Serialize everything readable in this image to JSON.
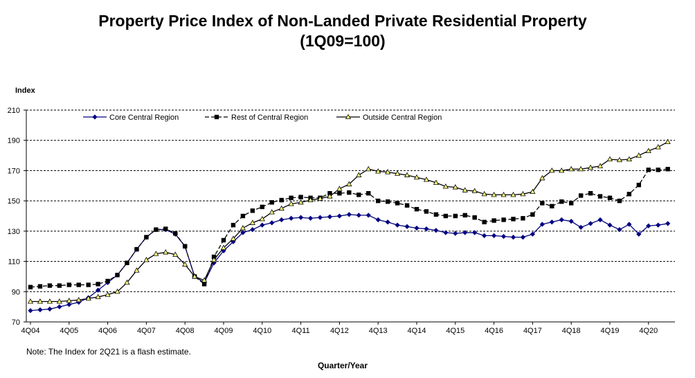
{
  "chart_data": {
    "type": "line",
    "title": "Property Price Index of Non-Landed Private Residential Property",
    "subtitle": "(1Q09=100)",
    "ylabel": "Index",
    "xlabel": "Quarter/Year",
    "note": "Note: The Index for 2Q21 is a flash estimate.",
    "ylim": [
      70,
      210
    ],
    "yticks": [
      70,
      90,
      110,
      130,
      150,
      170,
      190,
      210
    ],
    "grid": true,
    "legend_position": "top",
    "x_tick_labels": [
      "4Q04",
      "4Q05",
      "4Q06",
      "4Q07",
      "4Q08",
      "4Q09",
      "4Q10",
      "4Q11",
      "4Q12",
      "4Q13",
      "4Q14",
      "4Q15",
      "4Q16",
      "4Q17",
      "4Q18",
      "4Q19",
      "4Q20"
    ],
    "x": [
      "4Q04",
      "1Q05",
      "2Q05",
      "3Q05",
      "4Q05",
      "1Q06",
      "2Q06",
      "3Q06",
      "4Q06",
      "1Q07",
      "2Q07",
      "3Q07",
      "4Q07",
      "1Q08",
      "2Q08",
      "3Q08",
      "4Q08",
      "1Q09",
      "2Q09",
      "3Q09",
      "4Q09",
      "1Q10",
      "2Q10",
      "3Q10",
      "4Q10",
      "1Q11",
      "2Q11",
      "3Q11",
      "4Q11",
      "1Q12",
      "2Q12",
      "3Q12",
      "4Q12",
      "1Q13",
      "2Q13",
      "3Q13",
      "4Q13",
      "1Q14",
      "2Q14",
      "3Q14",
      "4Q14",
      "1Q15",
      "2Q15",
      "3Q15",
      "4Q15",
      "1Q16",
      "2Q16",
      "3Q16",
      "4Q16",
      "1Q17",
      "2Q17",
      "3Q17",
      "4Q17",
      "1Q18",
      "2Q18",
      "3Q18",
      "4Q18",
      "1Q19",
      "2Q19",
      "3Q19",
      "4Q19",
      "1Q20",
      "2Q20",
      "3Q20",
      "4Q20",
      "1Q21",
      "2Q21"
    ],
    "series": [
      {
        "name": "Core Central Region",
        "color": "#000080",
        "marker": "diamond",
        "line_style": "solid",
        "values": [
          77.5,
          78,
          78.5,
          80,
          81.5,
          83,
          86,
          91,
          96,
          101,
          109,
          118,
          126,
          131,
          131,
          128,
          120,
          100,
          96,
          109,
          117,
          123,
          129,
          131,
          134,
          135.5,
          137.5,
          138.5,
          139,
          138.5,
          139,
          139.5,
          140,
          141,
          140.5,
          140.5,
          137.5,
          136,
          134,
          133,
          132,
          131.5,
          130.5,
          129,
          128.5,
          129,
          129,
          127,
          127,
          126.5,
          126,
          126,
          128,
          134.5,
          136,
          137.5,
          136.5,
          132.5,
          135,
          137.5,
          134,
          131,
          134.5,
          128,
          133.5,
          134,
          135
        ]
      },
      {
        "name": "Rest of Central Region",
        "color": "#000000",
        "marker": "square",
        "line_style": "dashed",
        "values": [
          93,
          93.5,
          94,
          94,
          94.5,
          94.5,
          94.5,
          95,
          97,
          101,
          109,
          118,
          126,
          131,
          131.5,
          128.5,
          120,
          100,
          95,
          113,
          124,
          134,
          140,
          143.5,
          146,
          149,
          150.5,
          152,
          152.5,
          152,
          152,
          155,
          155,
          155.5,
          154,
          155,
          150,
          149.5,
          148.5,
          147,
          144.5,
          143,
          141,
          140,
          140,
          140.5,
          139,
          136,
          137,
          137.5,
          138,
          138.5,
          141,
          148.5,
          146.5,
          149.5,
          148.5,
          153.5,
          155,
          153,
          152,
          150,
          154.5,
          160.5,
          170.5,
          170.5,
          171
        ]
      },
      {
        "name": "Outside Central Region",
        "color": "#000000",
        "marker_fill": "#ffff80",
        "marker": "triangle",
        "line_style": "solid",
        "values": [
          83.5,
          83.5,
          83.5,
          83.5,
          84,
          84.5,
          85.5,
          86.5,
          88,
          90,
          96,
          104,
          111,
          115,
          116,
          114.5,
          108,
          100,
          97.5,
          111,
          119,
          125,
          132,
          135.5,
          138,
          142.5,
          145,
          148,
          149,
          150.5,
          151.5,
          153,
          158,
          161,
          167,
          171,
          169.5,
          169,
          168,
          167,
          165.5,
          164,
          162,
          159.5,
          159,
          157,
          156.5,
          154.5,
          154,
          154,
          154,
          154.5,
          156,
          165,
          170,
          170,
          171,
          171,
          172,
          173,
          177.5,
          177,
          177.5,
          180,
          183,
          185.5,
          189
        ]
      }
    ]
  }
}
